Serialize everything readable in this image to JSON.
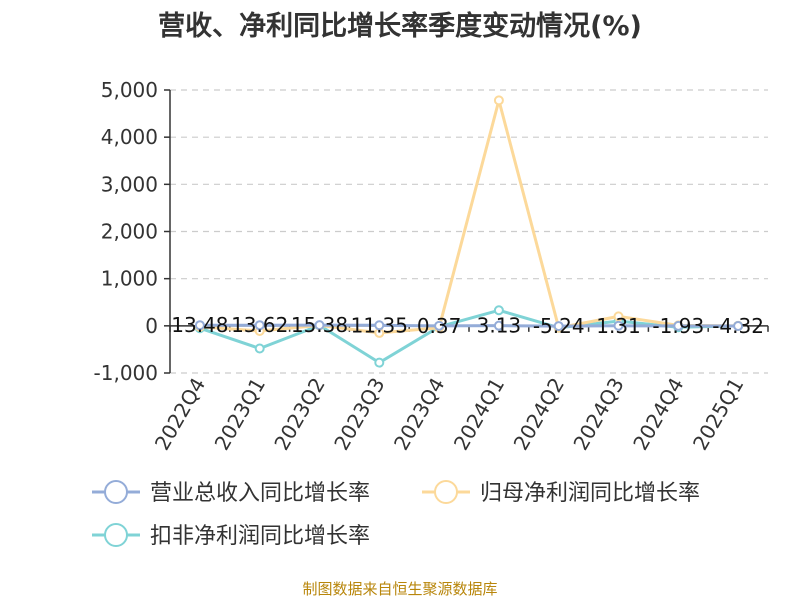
{
  "title": "营收、净利同比增长率季度变动情况(%)",
  "source": "制图数据来自恒生聚源数据库",
  "colors": {
    "revenue": "#94acd8",
    "net_profit": "#fcd99a",
    "deducted_net_profit": "#7fd3d6",
    "grid": "#cccccc",
    "axis": "#333333"
  },
  "chart_data": {
    "type": "line",
    "title": "营收、净利同比增长率季度变动情况(%)",
    "categories": [
      "2022Q4",
      "2023Q1",
      "2023Q2",
      "2023Q3",
      "2023Q4",
      "2024Q1",
      "2024Q2",
      "2024Q3",
      "2024Q4",
      "2025Q1"
    ],
    "ylim": [
      -1000,
      5000
    ],
    "yticks": [
      -1000,
      0,
      1000,
      2000,
      3000,
      4000,
      5000
    ],
    "ytick_labels": [
      "-1,000",
      "0",
      "1,000",
      "2,000",
      "3,000",
      "4,000",
      "5,000"
    ],
    "grid": true,
    "legend_position": "bottom",
    "series": [
      {
        "name": "营业总收入同比增长率",
        "color": "#94acd8",
        "values": [
          13.48,
          13.62,
          15.38,
          11.35,
          0.37,
          3.13,
          -5.24,
          1.31,
          -1.93,
          -4.32
        ],
        "labels": [
          "13.48",
          "13.62",
          "15.38",
          "11.35",
          "0.37",
          "3.13",
          "-5.24",
          "1.31",
          "-1.93",
          "-4.32"
        ]
      },
      {
        "name": "归母净利润同比增长率",
        "color": "#fcd99a",
        "values": [
          -20,
          -110,
          10,
          -150,
          -40,
          4780,
          -40,
          200,
          10,
          0
        ]
      },
      {
        "name": "扣非净利润同比增长率",
        "color": "#7fd3d6",
        "values": [
          -50,
          -480,
          10,
          -780,
          -20,
          330,
          -40,
          100,
          -30,
          0
        ]
      }
    ]
  }
}
